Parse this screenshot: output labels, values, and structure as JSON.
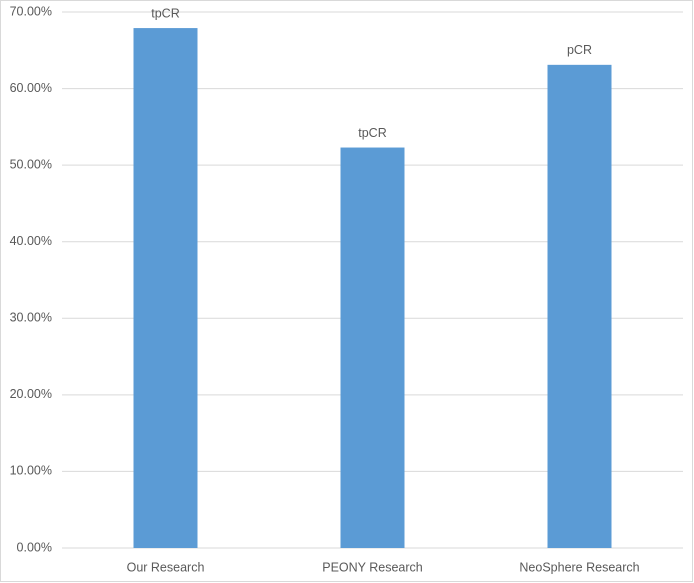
{
  "chart_data": {
    "type": "bar",
    "categories": [
      "Our Research",
      "PEONY Research",
      "NeoSphere Research"
    ],
    "values": [
      67.9,
      52.3,
      63.1
    ],
    "bar_labels": [
      "tpCR",
      "tpCR",
      "pCR"
    ],
    "color": "#5b9bd5",
    "ylim": [
      0,
      70
    ],
    "yticks": [
      {
        "value": 0,
        "label": "0.00%"
      },
      {
        "value": 10,
        "label": "10.00%"
      },
      {
        "value": 20,
        "label": "20.00%"
      },
      {
        "value": 30,
        "label": "30.00%"
      },
      {
        "value": 40,
        "label": "40.00%"
      },
      {
        "value": 50,
        "label": "50.00%"
      },
      {
        "value": 60,
        "label": "60.00%"
      },
      {
        "value": 70,
        "label": "70.00%"
      }
    ],
    "grid": true
  }
}
